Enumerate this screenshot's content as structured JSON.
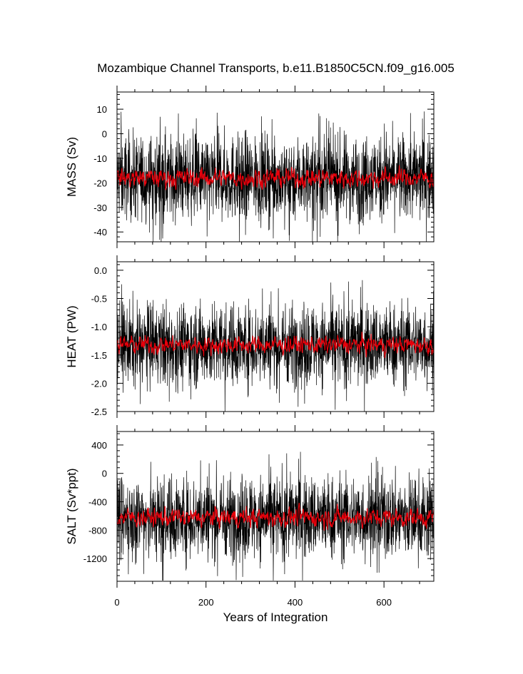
{
  "chart_data": {
    "type": "line",
    "title": "Mozambique Channel Transports, b.e11.B1850C5CN.f09_g16.005",
    "xlabel": "Years of Integration",
    "xlim": [
      0,
      712
    ],
    "xticks": [
      0,
      200,
      400,
      600
    ],
    "xtick_labels": [
      "0",
      "200",
      "400",
      "600"
    ],
    "colors": {
      "monthly": "#000000",
      "smoothed": "#e8000b"
    },
    "panels": [
      {
        "ylabel": "MASS (Sv)",
        "ylim": [
          -44,
          17
        ],
        "yticks": [
          10,
          0,
          -10,
          -20,
          -30,
          -40
        ],
        "ytick_labels": [
          "10",
          "0",
          "-10",
          "-20",
          "-30",
          "-40"
        ],
        "mean": -18,
        "monthly_spread": 8.5,
        "monthly_range": [
          -44,
          16
        ],
        "smoothed_spread": 2.2
      },
      {
        "ylabel": "HEAT (PW)",
        "ylim": [
          -2.5,
          0.15
        ],
        "yticks": [
          0.0,
          -0.5,
          -1.0,
          -1.5,
          -2.0,
          -2.5
        ],
        "ytick_labels": [
          "0.0",
          "-0.5",
          "-1.0",
          "-1.5",
          "-2.0",
          "-2.5"
        ],
        "mean": -1.32,
        "monthly_spread": 0.36,
        "monthly_range": [
          -2.5,
          0.1
        ],
        "smoothed_spread": 0.09
      },
      {
        "ylabel": "SALT (Sv*ppt)",
        "ylim": [
          -1520,
          590
        ],
        "yticks": [
          400,
          0,
          -400,
          -800,
          -1200
        ],
        "ytick_labels": [
          "400",
          "0",
          "-400",
          "-800",
          "-1200"
        ],
        "mean": -620,
        "monthly_spread": 290,
        "monthly_range": [
          -1510,
          580
        ],
        "smoothed_spread": 75
      }
    ]
  }
}
